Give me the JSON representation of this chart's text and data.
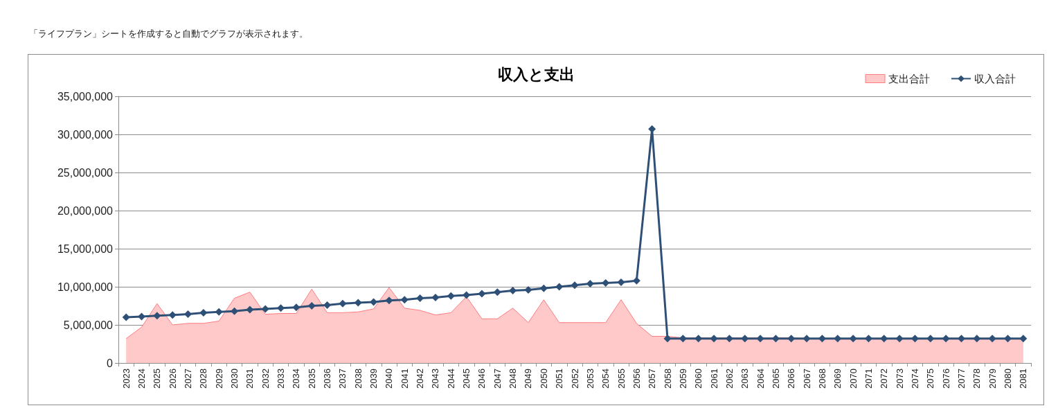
{
  "chart_data": {
    "type": "line",
    "title": "収入と支出",
    "annotations": [
      "「ライフプラン」シートを作成すると自動でグラフが表示されます。"
    ],
    "categories": [
      "2023",
      "2024",
      "2025",
      "2026",
      "2027",
      "2028",
      "2029",
      "2030",
      "2031",
      "2032",
      "2033",
      "2034",
      "2035",
      "2036",
      "2037",
      "2038",
      "2039",
      "2040",
      "2041",
      "2042",
      "2043",
      "2044",
      "2045",
      "2046",
      "2047",
      "2048",
      "2049",
      "2050",
      "2051",
      "2052",
      "2053",
      "2054",
      "2055",
      "2056",
      "2057",
      "2058",
      "2059",
      "2060",
      "2061",
      "2062",
      "2063",
      "2064",
      "2065",
      "2066",
      "2067",
      "2068",
      "2069",
      "2070",
      "2071",
      "2072",
      "2073",
      "2074",
      "2075",
      "2076",
      "2077",
      "2078",
      "2079",
      "2080",
      "2081"
    ],
    "ylim": [
      0,
      35000000
    ],
    "yticks": [
      0,
      {
        "value": 5000000,
        "label": "5,000,000"
      },
      {
        "value": 10000000,
        "label": "10,000,000"
      },
      {
        "value": 15000000,
        "label": "15,000,000"
      },
      {
        "value": 20000000,
        "label": "20,000,000"
      },
      {
        "value": 25000000,
        "label": "25,000,000"
      },
      {
        "value": 30000000,
        "label": "30,000,000"
      },
      {
        "value": 35000000,
        "label": "35,000,000"
      }
    ],
    "grid": "y",
    "legend": "top right",
    "series": [
      {
        "name": "支出合計",
        "type": "area",
        "color": "#ff7c80",
        "values": [
          3200000,
          4700000,
          7800000,
          5000000,
          5200000,
          5200000,
          5500000,
          8500000,
          9300000,
          6400000,
          6500000,
          6500000,
          9700000,
          6600000,
          6600000,
          6700000,
          7100000,
          9900000,
          7200000,
          6900000,
          6300000,
          6600000,
          8700000,
          5800000,
          5800000,
          7200000,
          5300000,
          8300000,
          5300000,
          5300000,
          5300000,
          5300000,
          8300000,
          5200000,
          3500000,
          3500000,
          3300000,
          3300000,
          3300000,
          3300000,
          3300000,
          3300000,
          3300000,
          3300000,
          3200000,
          3200000,
          3200000,
          3200000,
          3200000,
          3200000,
          3200000,
          3200000,
          3200000,
          3200000,
          3200000,
          3200000,
          3200000,
          3200000,
          3200000
        ]
      },
      {
        "name": "収入合計",
        "color": "#2f5076",
        "marker": "diamond",
        "values": [
          6000000,
          6100000,
          6200000,
          6300000,
          6400000,
          6600000,
          6700000,
          6800000,
          7000000,
          7100000,
          7200000,
          7300000,
          7500000,
          7600000,
          7800000,
          7900000,
          8000000,
          8200000,
          8300000,
          8500000,
          8600000,
          8800000,
          8900000,
          9100000,
          9300000,
          9500000,
          9600000,
          9800000,
          10000000,
          10200000,
          10400000,
          10500000,
          10600000,
          10800000,
          30700000,
          3200000,
          3200000,
          3200000,
          3200000,
          3200000,
          3200000,
          3200000,
          3200000,
          3200000,
          3200000,
          3200000,
          3200000,
          3200000,
          3200000,
          3200000,
          3200000,
          3200000,
          3200000,
          3200000,
          3200000,
          3200000,
          3200000,
          3200000,
          3200000
        ]
      }
    ]
  }
}
